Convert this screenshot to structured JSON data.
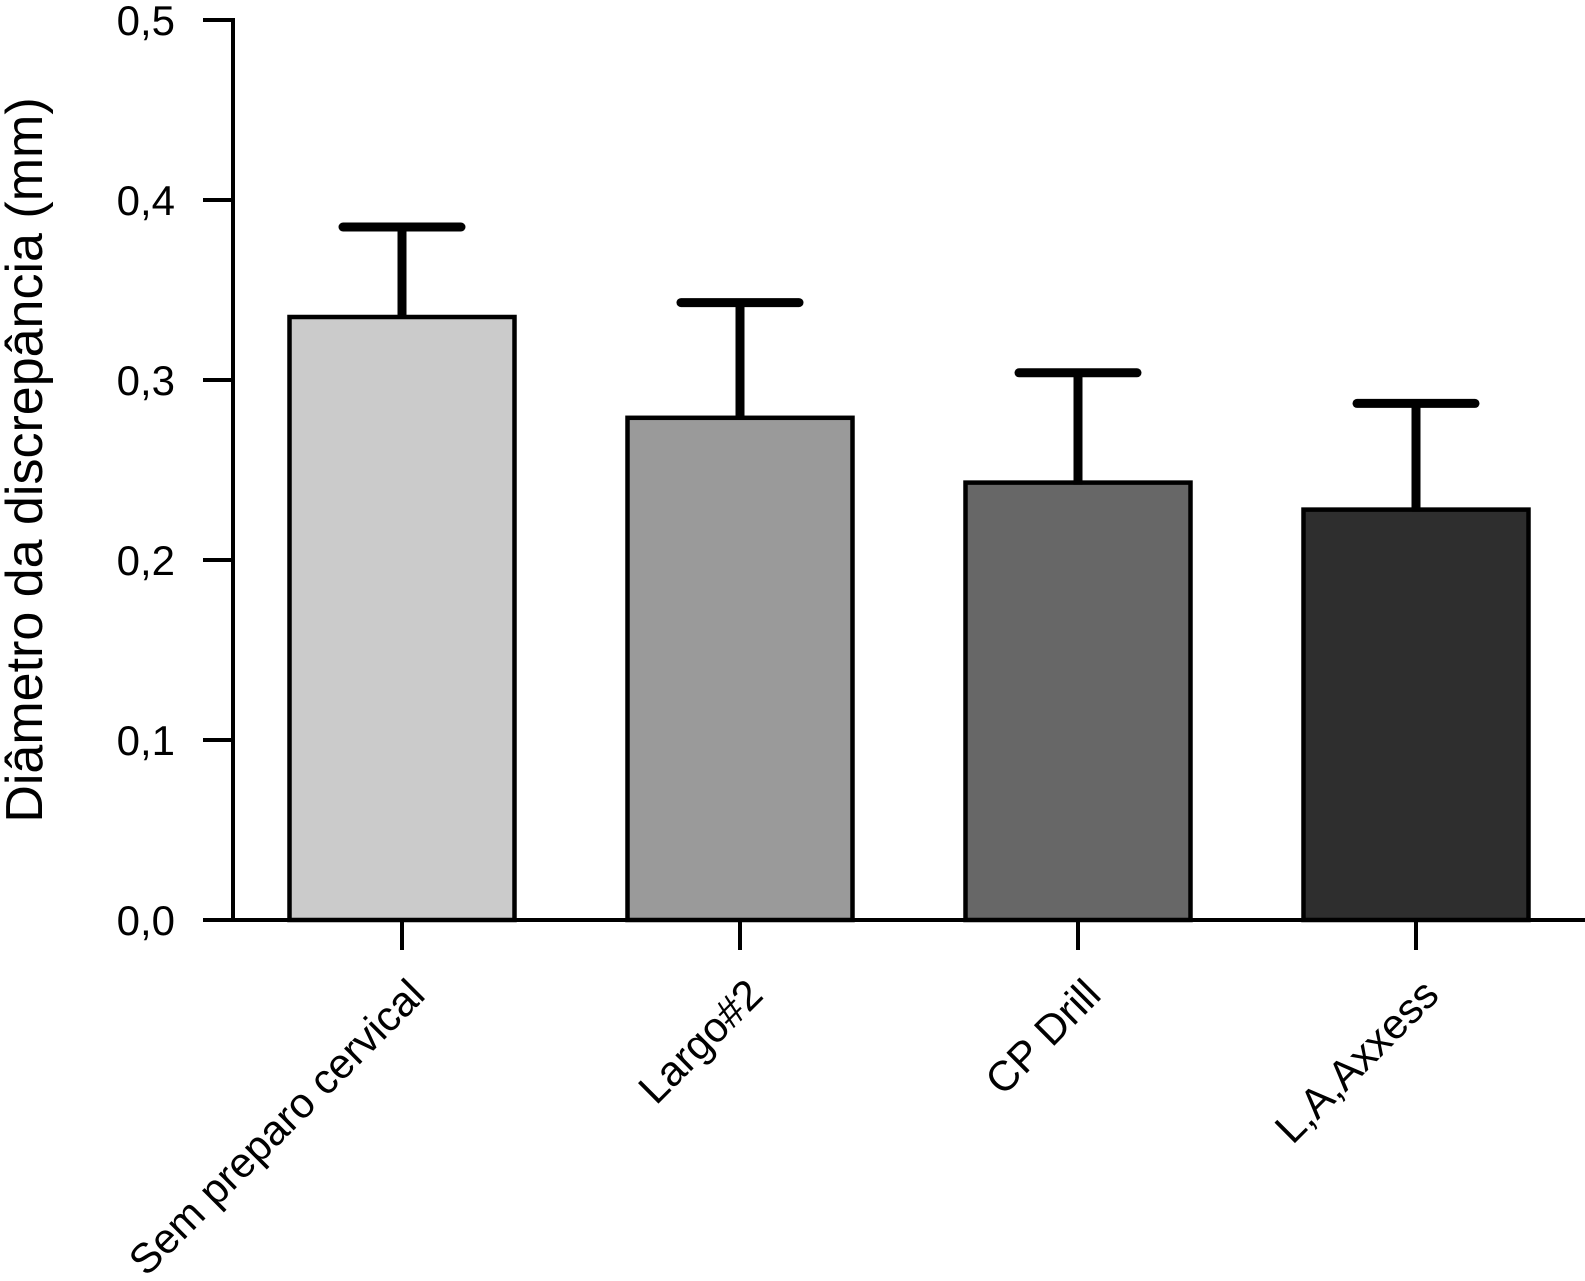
{
  "chart_data": {
    "type": "bar",
    "title": "",
    "xlabel": "",
    "ylabel": "Diâmetro da discrepância (mm)",
    "categories": [
      "Sem preparo cervical",
      "Largo#2",
      "CP Drill",
      "L,A,Axxess"
    ],
    "series": [
      {
        "name": "Diâmetro da discrepância",
        "values": [
          0.335,
          0.279,
          0.243,
          0.228
        ],
        "errors_upper_to": [
          0.385,
          0.343,
          0.304,
          0.287
        ]
      }
    ],
    "bar_colors": [
      "#cbcbcb",
      "#9a9a9a",
      "#676767",
      "#2e2e2e"
    ],
    "bar_outline_color": "#000000",
    "axis_color": "#000000",
    "error_bar_color": "#000000",
    "background_color": "#ffffff",
    "ylim": [
      0,
      0.5
    ],
    "yticks": [
      {
        "value": 0.0,
        "label": "0,0"
      },
      {
        "value": 0.1,
        "label": "0,1"
      },
      {
        "value": 0.2,
        "label": "0,2"
      },
      {
        "value": 0.3,
        "label": "0,3"
      },
      {
        "value": 0.4,
        "label": "0,4"
      },
      {
        "value": 0.5,
        "label": "0,5"
      }
    ],
    "decimal_separator": ",",
    "grid": false,
    "legend_position": "none",
    "x_label_rotation_deg": 45
  }
}
